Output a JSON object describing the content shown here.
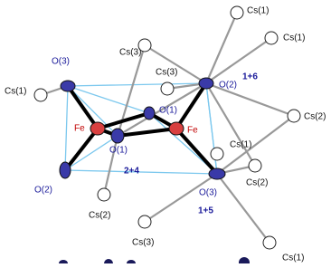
{
  "labels": [
    "Cs(3)",
    "Cs(1)",
    "Cs(1)",
    "O(3)",
    "Cs(3)",
    "O(2)",
    "1+6",
    "Cs(1)",
    "O(1)",
    "Fe",
    "Fe",
    "O(1)",
    "Cs(2)",
    "2+4",
    "Cs(1)",
    "Cs(2)",
    "O(3)",
    "1+5",
    "O(2)",
    "Cs(2)",
    "Cs(3)",
    "Cs(1)"
  ]
}
